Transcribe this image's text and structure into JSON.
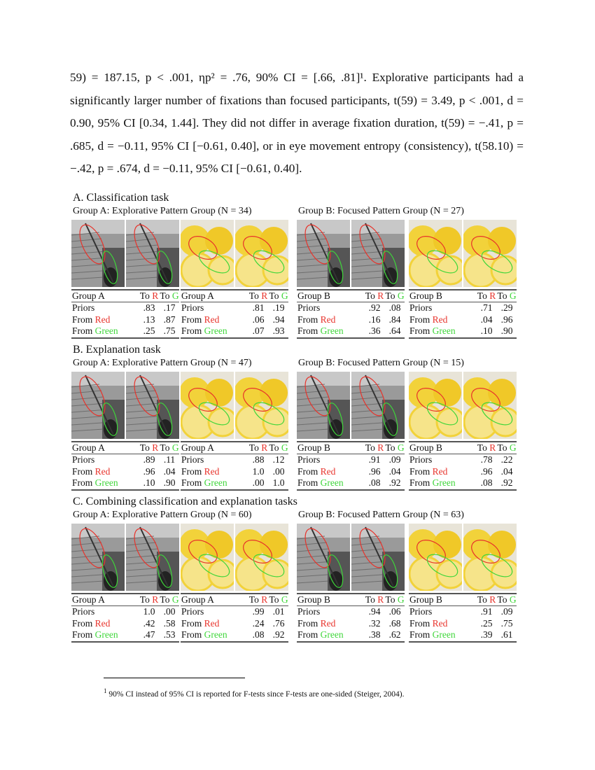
{
  "body_text": [
    "59) = 187.15, p < .001, ηp² = .76, 90% CI = [.66, .81]¹. Explorative participants had a significantly larger number of fixations than focused participants, t(59) = 3.49, p < .001, d = 0.90, 95% CI [0.34, 1.44]. They did not differ in average fixation duration, t(59) = −.41, p = .685, d = −0.11, 95% CI [−0.61, 0.40], or in eye movement entropy (consistency), t(58.10) = −.42, p = .674, d = −0.11, 95% CI [−0.61, 0.40]."
  ],
  "colors": {
    "red": "#e8322a",
    "green": "#3fd63a",
    "stair_image": "#8a8a8a",
    "lemon_image": "#f2d23a"
  },
  "row_labels": {
    "priors": "Priors",
    "from": "From",
    "red": "Red",
    "green": "Green",
    "to": "To",
    "r": "R",
    "g": "G"
  },
  "sections": [
    {
      "title": "A. Classification task",
      "groups": [
        {
          "label": "Group A: Explorative Pattern Group (N = 34)",
          "tables": [
            {
              "header": "Group A",
              "image": "stairs",
              "rows": [
                [
                  ".83",
                  ".17"
                ],
                [
                  ".13",
                  ".87"
                ],
                [
                  ".25",
                  ".75"
                ]
              ]
            },
            {
              "header": "Group A",
              "image": "lemons",
              "rows": [
                [
                  ".81",
                  ".19"
                ],
                [
                  ".06",
                  ".94"
                ],
                [
                  ".07",
                  ".93"
                ]
              ]
            }
          ]
        },
        {
          "label": "Group B: Focused Pattern Group (N = 27)",
          "tables": [
            {
              "header": "Group B",
              "image": "stairs",
              "rows": [
                [
                  ".92",
                  ".08"
                ],
                [
                  ".16",
                  ".84"
                ],
                [
                  ".36",
                  ".64"
                ]
              ]
            },
            {
              "header": "Group B",
              "image": "lemons",
              "rows": [
                [
                  ".71",
                  ".29"
                ],
                [
                  ".04",
                  ".96"
                ],
                [
                  ".10",
                  ".90"
                ]
              ]
            }
          ]
        }
      ]
    },
    {
      "title": "B. Explanation task",
      "groups": [
        {
          "label": "Group A: Explorative Pattern Group (N = 47)",
          "tables": [
            {
              "header": "Group A",
              "image": "stairs",
              "rows": [
                [
                  ".89",
                  ".11"
                ],
                [
                  ".96",
                  ".04"
                ],
                [
                  ".10",
                  ".90"
                ]
              ]
            },
            {
              "header": "Group A",
              "image": "lemons",
              "rows": [
                [
                  ".88",
                  ".12"
                ],
                [
                  "1.0",
                  ".00"
                ],
                [
                  ".00",
                  "1.0"
                ]
              ]
            }
          ]
        },
        {
          "label": "Group B: Focused Pattern Group (N = 15)",
          "tables": [
            {
              "header": "Group B",
              "image": "stairs",
              "rows": [
                [
                  ".91",
                  ".09"
                ],
                [
                  ".96",
                  ".04"
                ],
                [
                  ".08",
                  ".92"
                ]
              ]
            },
            {
              "header": "Group B",
              "image": "lemons",
              "rows": [
                [
                  ".78",
                  ".22"
                ],
                [
                  ".96",
                  ".04"
                ],
                [
                  ".08",
                  ".92"
                ]
              ]
            }
          ]
        }
      ]
    },
    {
      "title": "C. Combining classification and explanation tasks",
      "groups": [
        {
          "label": "Group A: Explorative Pattern Group (N = 60)",
          "tables": [
            {
              "header": "Group A",
              "image": "stairs",
              "rows": [
                [
                  "1.0",
                  ".00"
                ],
                [
                  ".42",
                  ".58"
                ],
                [
                  ".47",
                  ".53"
                ]
              ]
            },
            {
              "header": "Group A",
              "image": "lemons",
              "rows": [
                [
                  ".99",
                  ".01"
                ],
                [
                  ".24",
                  ".76"
                ],
                [
                  ".08",
                  ".92"
                ]
              ]
            }
          ]
        },
        {
          "label": "Group B: Focused Pattern Group (N = 63)",
          "tables": [
            {
              "header": "Group B",
              "image": "stairs",
              "rows": [
                [
                  ".94",
                  ".06"
                ],
                [
                  ".32",
                  ".68"
                ],
                [
                  ".38",
                  ".62"
                ]
              ]
            },
            {
              "header": "Group B",
              "image": "lemons",
              "rows": [
                [
                  ".91",
                  ".09"
                ],
                [
                  ".25",
                  ".75"
                ],
                [
                  ".39",
                  ".61"
                ]
              ]
            }
          ]
        }
      ]
    }
  ],
  "footnote": {
    "marker": "1",
    "text": "90% CI instead of 95% CI is reported for F-tests since F-tests are one-sided (Steiger, 2004)."
  }
}
